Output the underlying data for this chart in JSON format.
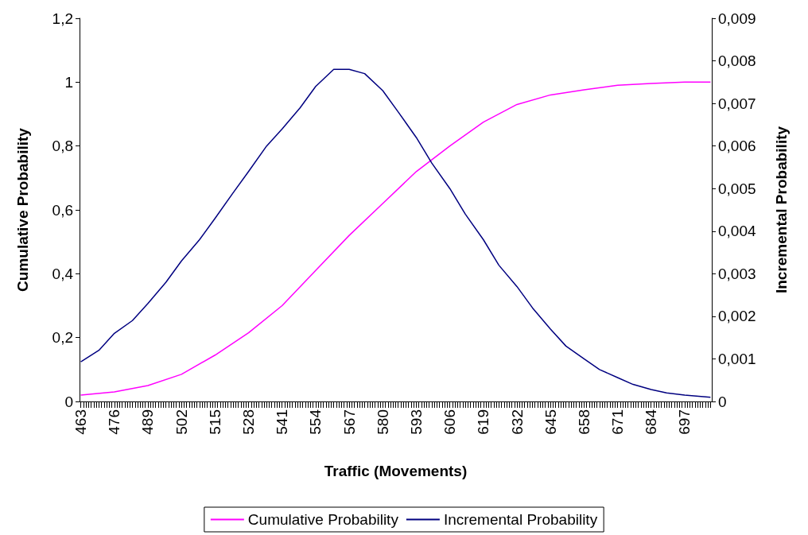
{
  "chart_data": {
    "type": "line",
    "xlabel": "Traffic (Movements)",
    "ylabel": "Cumulative Probability",
    "y2label": "Incremental Probability",
    "xlim": [
      462.5,
      707.5
    ],
    "xticks": [
      463,
      476,
      489,
      502,
      515,
      528,
      541,
      554,
      567,
      580,
      593,
      606,
      619,
      632,
      645,
      658,
      671,
      684,
      697
    ],
    "ylim": [
      0,
      1.2
    ],
    "yticks": [
      0,
      {
        "value": 0.2,
        "label": "0,2"
      },
      {
        "value": 0.4,
        "label": "0,4"
      },
      {
        "value": 0.6,
        "label": "0,6"
      },
      {
        "value": 0.8,
        "label": "0,8"
      },
      1,
      {
        "value": 1.2,
        "label": "1,2"
      }
    ],
    "y2lim": [
      0,
      0.009
    ],
    "y2ticks": [
      0,
      {
        "value": 0.001,
        "label": "0,001"
      },
      {
        "value": 0.002,
        "label": "0,002"
      },
      {
        "value": 0.003,
        "label": "0,003"
      },
      {
        "value": 0.004,
        "label": "0,004"
      },
      {
        "value": 0.005,
        "label": "0,005"
      },
      {
        "value": 0.006,
        "label": "0,006"
      },
      {
        "value": 0.007,
        "label": "0,007"
      },
      {
        "value": 0.008,
        "label": "0,008"
      },
      {
        "value": 0.009,
        "label": "0,009"
      }
    ],
    "series": [
      {
        "name": "Cumulative Probability",
        "color": "#ff00ff",
        "x": [
          463,
          476,
          489,
          502,
          515,
          528,
          541,
          554,
          567,
          580,
          593,
          606,
          619,
          632,
          645,
          658,
          671,
          684,
          697,
          707
        ],
        "values": [
          0.02,
          0.03,
          0.05,
          0.085,
          0.145,
          0.215,
          0.3,
          0.41,
          0.52,
          0.62,
          0.72,
          0.8,
          0.875,
          0.93,
          0.96,
          0.976,
          0.99,
          0.996,
          1,
          1
        ]
      },
      {
        "name": "Incremental Probability",
        "color": "#000080",
        "axis": "y2",
        "x": [
          463,
          470,
          476,
          483,
          489,
          496,
          502,
          509,
          515,
          522,
          528,
          535,
          541,
          548,
          554,
          561,
          567,
          573,
          580,
          586,
          593,
          599,
          606,
          612,
          619,
          625,
          632,
          638,
          645,
          651,
          658,
          664,
          671,
          677,
          684,
          690,
          697,
          707
        ],
        "values": [
          0.00093,
          0.0012,
          0.0016,
          0.0019,
          0.0023,
          0.0028,
          0.0033,
          0.0038,
          0.0043,
          0.0049,
          0.0054,
          0.006,
          0.0064,
          0.0069,
          0.0074,
          0.0078,
          0.0078,
          0.0077,
          0.0073,
          0.0068,
          0.0062,
          0.0056,
          0.005,
          0.0044,
          0.0038,
          0.0032,
          0.0027,
          0.0022,
          0.0017,
          0.0013,
          0.001,
          0.00075,
          0.00056,
          0.0004,
          0.00028,
          0.0002,
          0.00015,
          0.0001
        ]
      }
    ],
    "grid": false,
    "legend": "bottom",
    "marker": "none",
    "line_style": "solid"
  }
}
